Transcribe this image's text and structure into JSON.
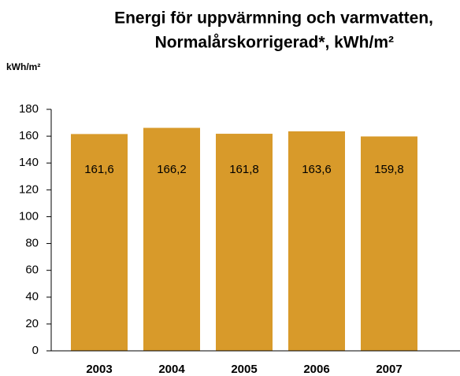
{
  "chart_data": {
    "type": "bar",
    "title": [
      "Energi för uppvärmning och varmvatten,",
      "Normalårskorrigerad*, kWh/m²"
    ],
    "y_label": "kWh/m²",
    "categories": [
      "2003",
      "2004",
      "2005",
      "2006",
      "2007"
    ],
    "values": [
      161.6,
      166.2,
      161.8,
      163.6,
      159.8
    ],
    "value_labels": [
      "161,6",
      "166,2",
      "161,8",
      "163,6",
      "159,8"
    ],
    "color": "#d89a2a",
    "ylim": [
      0,
      180
    ],
    "yticks": [
      0,
      20,
      40,
      60,
      80,
      100,
      120,
      140,
      160,
      180
    ],
    "grid": false
  }
}
